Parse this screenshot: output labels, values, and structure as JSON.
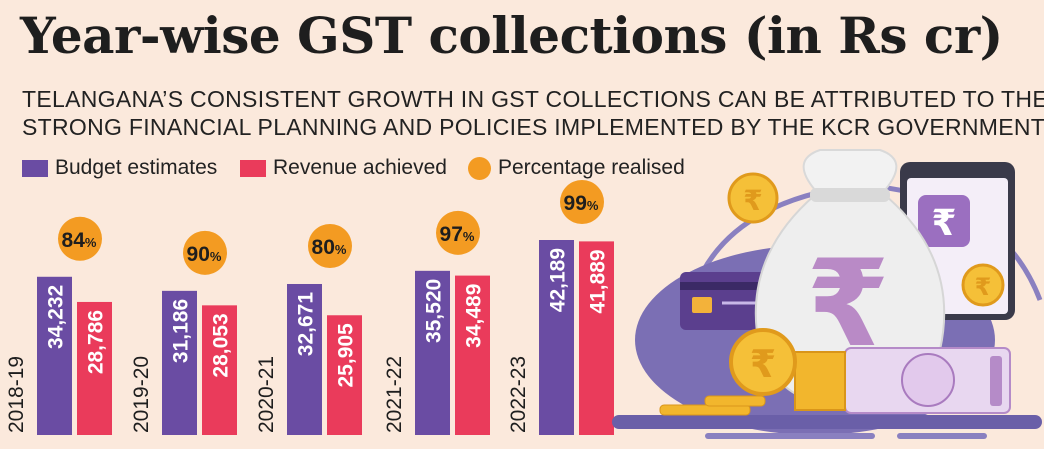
{
  "header": {
    "title": "Year-wise GST collections (in Rs cr)",
    "subtitle_line1": "TELANGANA’S CONSISTENT GROWTH IN GST COLLECTIONS CAN BE ATTRIBUTED TO THE",
    "subtitle_line2": "STRONG FINANCIAL PLANNING AND POLICIES IMPLEMENTED BY THE KCR GOVERNMENT"
  },
  "legend": {
    "budget": "Budget estimates",
    "revenue": "Revenue achieved",
    "percentage": "Percentage realised"
  },
  "colors": {
    "background": "#fbe9dc",
    "budget": "#6a4ca3",
    "revenue": "#ea3b5b",
    "percentage": "#f39b22"
  },
  "chart_data": {
    "type": "bar",
    "title": "Year-wise GST collections (in Rs cr)",
    "categories": [
      "2018-19",
      "2019-20",
      "2020-21",
      "2021-22",
      "2022-23"
    ],
    "series": [
      {
        "name": "Budget estimates",
        "values": [
          34232,
          31186,
          32671,
          35520,
          42189
        ],
        "labels": [
          "34,232",
          "31,186",
          "32,671",
          "35,520",
          "42,189"
        ]
      },
      {
        "name": "Revenue achieved",
        "values": [
          28786,
          28053,
          25905,
          34489,
          41889
        ],
        "labels": [
          "28,786",
          "28,053",
          "25,905",
          "34,489",
          "41,889"
        ]
      }
    ],
    "percentage_realised": [
      84,
      90,
      80,
      97,
      99
    ],
    "percent_symbol": "%",
    "xlabel": "",
    "ylabel": "Rs cr",
    "ylim": [
      0,
      48000
    ]
  }
}
